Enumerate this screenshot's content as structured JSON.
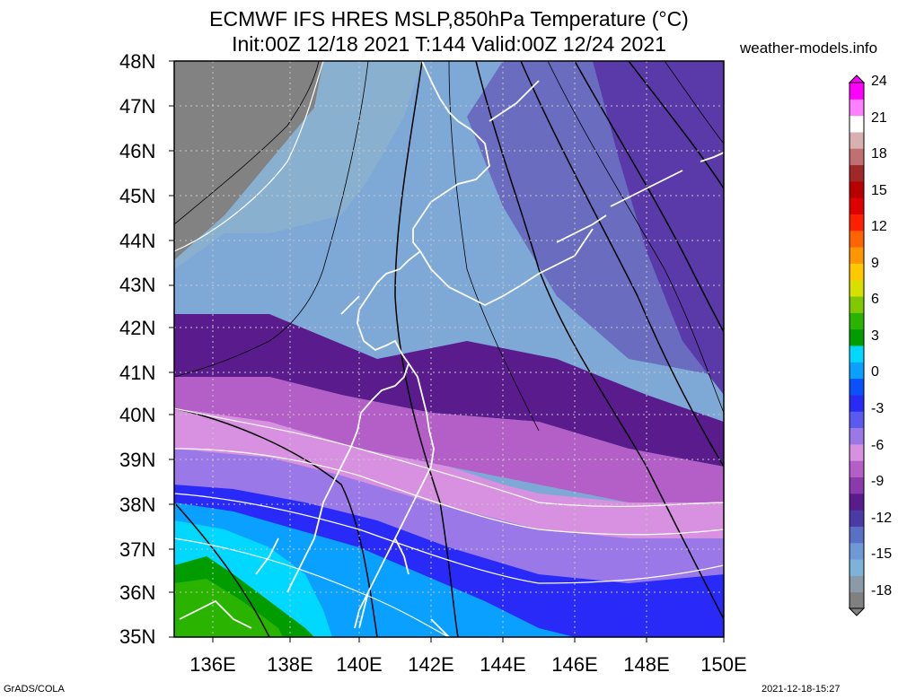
{
  "header": {
    "title_line1": "ECMWF IFS HRES MSLP,850hPa Temperature (°C)",
    "title_line2": "Init:00Z 12/18 2021 T:144 Valid:00Z 12/24 2021",
    "site": "weather-models.info"
  },
  "axes": {
    "lat_labels": [
      "48N",
      "47N",
      "46N",
      "45N",
      "44N",
      "43N",
      "42N",
      "41N",
      "40N",
      "39N",
      "38N",
      "37N",
      "36N",
      "35N"
    ],
    "lon_labels": [
      "136E",
      "138E",
      "140E",
      "142E",
      "144E",
      "146E",
      "148E",
      "150E"
    ]
  },
  "colorbar": {
    "labels": [
      "24",
      "21",
      "18",
      "15",
      "12",
      "9",
      "6",
      "3",
      "0",
      "-3",
      "-6",
      "-9",
      "-12",
      "-15",
      "-18"
    ],
    "colors": [
      "#808080",
      "#8a9aa8",
      "#7fb2d9",
      "#6e98d6",
      "#5a6fc6",
      "#4a3aa6",
      "#5a1c8c",
      "#8a3aaa",
      "#b45ec8",
      "#d890e0",
      "#9a78e8",
      "#5a5af0",
      "#2a2af8",
      "#0a50ff",
      "#0aa0ff",
      "#00d8ff",
      "#009c00",
      "#2ab400",
      "#80c800",
      "#d8e000",
      "#ffc800",
      "#ff9600",
      "#ff6400",
      "#ff2000",
      "#e00000",
      "#b80000",
      "#a02828",
      "#c07070",
      "#d8b0b0",
      "#ffffff",
      "#ff80ff",
      "#ff00ff"
    ]
  },
  "footer": {
    "left": "GrADS/COLA",
    "right": "2021-12-18-15:27"
  }
}
